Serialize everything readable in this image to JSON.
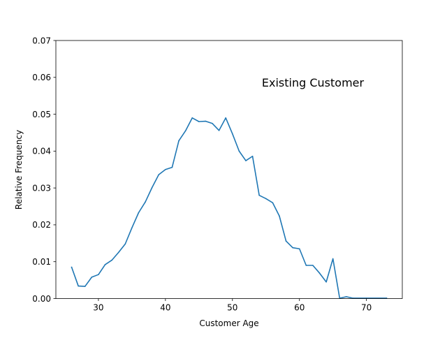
{
  "chart_data": {
    "type": "line",
    "title": "",
    "xlabel": "Customer Age",
    "ylabel": "Relative Frequency",
    "annotation": "Existing Customer",
    "xlim": [
      23.65,
      75.35
    ],
    "ylim": [
      0,
      0.07
    ],
    "xticks": [
      30,
      40,
      50,
      60,
      70
    ],
    "yticks": [
      0.0,
      0.01,
      0.02,
      0.03,
      0.04,
      0.05,
      0.06,
      0.07
    ],
    "ytick_labels": [
      "0.00",
      "0.01",
      "0.02",
      "0.03",
      "0.04",
      "0.05",
      "0.06",
      "0.07"
    ],
    "grid": false,
    "line_color": "#1f77b4",
    "series": [
      {
        "x": [
          26,
          27,
          28,
          29,
          30,
          31,
          32,
          33,
          34,
          35,
          36,
          37,
          38,
          39,
          40,
          41,
          42,
          43,
          44,
          45,
          46,
          47,
          48,
          49,
          50,
          51,
          52,
          53,
          54,
          55,
          56,
          57,
          58,
          59,
          60,
          61,
          62,
          63,
          64,
          65,
          66,
          67,
          68,
          70,
          73
        ],
        "values": [
          0.0085,
          0.0034,
          0.0033,
          0.0058,
          0.0065,
          0.0092,
          0.0104,
          0.0125,
          0.0148,
          0.0192,
          0.0233,
          0.0262,
          0.0301,
          0.0336,
          0.035,
          0.0356,
          0.0428,
          0.0455,
          0.049,
          0.048,
          0.0481,
          0.0475,
          0.0456,
          0.049,
          0.0447,
          0.04,
          0.0374,
          0.0386,
          0.028,
          0.0271,
          0.026,
          0.0224,
          0.0156,
          0.0138,
          0.0135,
          0.009,
          0.009,
          0.0069,
          0.0045,
          0.0108,
          0.0001,
          0.0005,
          0.0001,
          0.0001,
          0.0001
        ]
      }
    ]
  }
}
